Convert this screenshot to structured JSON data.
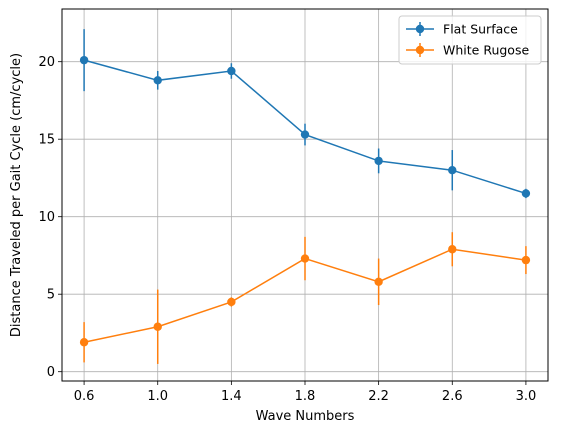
{
  "chart_data": {
    "type": "line",
    "xlabel": "Wave Numbers",
    "ylabel": "Distance Traveled per Gait Cycle (cm/cycle)",
    "x": [
      0.6,
      1.0,
      1.4,
      1.8,
      2.2,
      2.6,
      3.0
    ],
    "x_tick_labels": [
      "0.6",
      "1.0",
      "1.4",
      "1.8",
      "2.2",
      "2.6",
      "3.0"
    ],
    "y_ticks": [
      0,
      5,
      10,
      15,
      20
    ],
    "y_tick_labels": [
      "0",
      "5",
      "10",
      "15",
      "20"
    ],
    "xlim": [
      0.48,
      3.12
    ],
    "ylim": [
      -0.6,
      23.4
    ],
    "grid": true,
    "legend_position": "top-right",
    "series": [
      {
        "name": "Flat Surface",
        "color": "#1f77b4",
        "values": [
          20.1,
          18.8,
          19.4,
          15.3,
          13.6,
          13.0,
          11.5
        ],
        "errors": [
          2.0,
          0.6,
          0.5,
          0.7,
          0.8,
          1.3,
          0.3
        ]
      },
      {
        "name": "White Rugose",
        "color": "#ff7f0e",
        "values": [
          1.9,
          2.9,
          4.5,
          7.3,
          5.8,
          7.9,
          7.2
        ],
        "errors": [
          1.3,
          2.4,
          0.3,
          1.4,
          1.5,
          1.1,
          0.9
        ]
      }
    ]
  }
}
